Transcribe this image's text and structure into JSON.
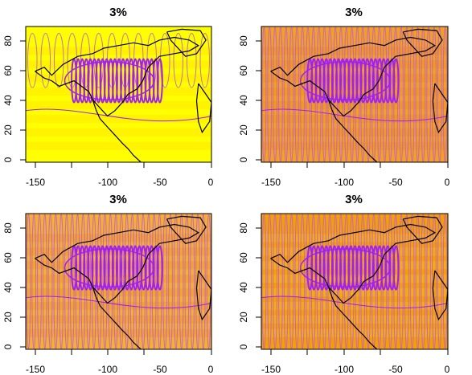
{
  "panels": [
    {
      "title": "3%",
      "xaxis": {
        "ticks": [
          -150,
          -100,
          -50,
          0
        ],
        "labels": [
          "-150",
          "-100",
          "-50",
          "0"
        ],
        "range": [
          -182,
          0
        ]
      },
      "yaxis": {
        "ticks": [
          0,
          20,
          40,
          60,
          80
        ],
        "labels": [
          "0",
          "20",
          "40",
          "60",
          "80"
        ],
        "range": [
          -2,
          90
        ]
      },
      "background": {
        "base": "#ffff00",
        "warm": "#ffdd00",
        "palette": "heat"
      },
      "contours": {
        "color": "#a020f0",
        "secondary": "#c060d0"
      },
      "coastline_color": "#000000"
    },
    {
      "title": "3%",
      "xaxis": {
        "ticks": [
          -150,
          -100,
          -50,
          0
        ],
        "labels": [
          "-150",
          "-100",
          "-50",
          "0"
        ],
        "range": [
          -182,
          0
        ]
      },
      "yaxis": {
        "ticks": [
          0,
          20,
          40,
          60,
          80
        ],
        "labels": [
          "0",
          "20",
          "40",
          "60",
          "80"
        ],
        "range": [
          -2,
          90
        ]
      },
      "background": {
        "base": "#f4a020",
        "warm": "#ee8a10",
        "palette": "heat"
      },
      "contours": {
        "color": "#a020f0",
        "secondary": "#c060d0"
      },
      "coastline_color": "#000000"
    },
    {
      "title": "3%",
      "xaxis": {
        "ticks": [
          -150,
          -100,
          -50,
          0
        ],
        "labels": [
          "-150",
          "-100",
          "-50",
          "0"
        ],
        "range": [
          -182,
          0
        ]
      },
      "yaxis": {
        "ticks": [
          0,
          20,
          40,
          60,
          80
        ],
        "labels": [
          "0",
          "20",
          "40",
          "60",
          "80"
        ],
        "range": [
          -2,
          90
        ]
      },
      "background": {
        "base": "#f6b030",
        "warm": "#f09018",
        "palette": "heat"
      },
      "contours": {
        "color": "#a020f0",
        "secondary": "#c060d0"
      },
      "coastline_color": "#000000"
    },
    {
      "title": "3%",
      "xaxis": {
        "ticks": [
          -150,
          -100,
          -50,
          0
        ],
        "labels": [
          "-150",
          "-100",
          "-50",
          "0"
        ],
        "range": [
          -182,
          0
        ]
      },
      "yaxis": {
        "ticks": [
          0,
          20,
          40,
          60,
          80
        ],
        "labels": [
          "0",
          "20",
          "40",
          "60",
          "80"
        ],
        "range": [
          -2,
          90
        ]
      },
      "background": {
        "base": "#f5a000",
        "warm": "#f8c030",
        "palette": "heat"
      },
      "contours": {
        "color": "#a020f0",
        "secondary": "#c060d0"
      },
      "coastline_color": "#000000"
    }
  ]
}
